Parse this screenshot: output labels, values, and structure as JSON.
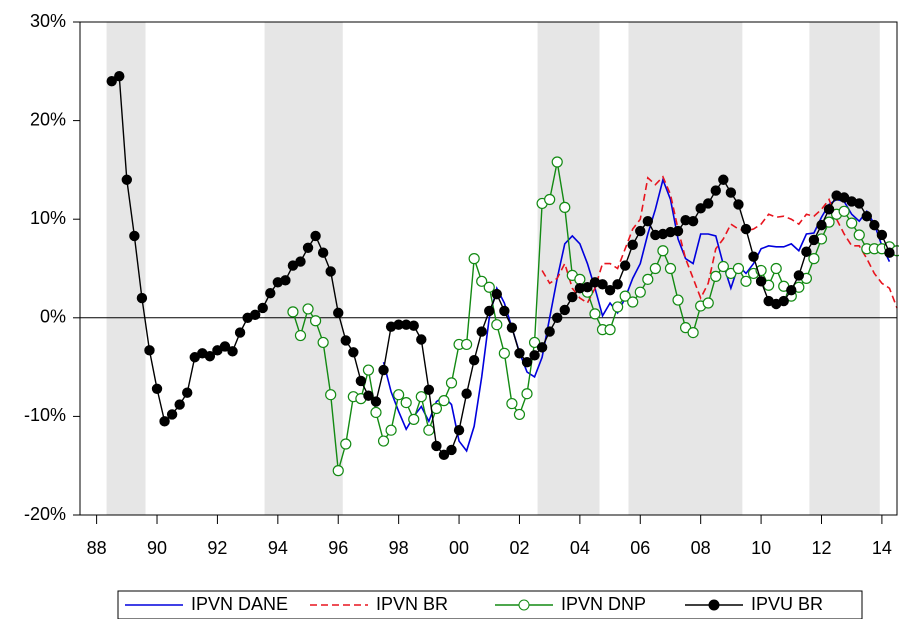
{
  "chart_data": {
    "type": "line",
    "x": [
      1988.5,
      1988.75,
      1989,
      1989.25,
      1989.5,
      1989.75,
      1990,
      1990.25,
      1990.5,
      1990.75,
      1991,
      1991.25,
      1991.5,
      1991.75,
      1992,
      1992.25,
      1992.5,
      1992.75,
      1993,
      1993.25,
      1993.5,
      1993.75,
      1994,
      1994.25,
      1994.5,
      1994.75,
      1995,
      1995.25,
      1995.5,
      1995.75,
      1996,
      1996.25,
      1996.5,
      1996.75,
      1997,
      1997.25,
      1997.5,
      1997.75,
      1998,
      1998.25,
      1998.5,
      1998.75,
      1999,
      1999.25,
      1999.5,
      1999.75,
      2000,
      2000.25,
      2000.5,
      2000.75,
      2001,
      2001.25,
      2001.5,
      2001.75,
      2002,
      2002.25,
      2002.5,
      2002.75,
      2003,
      2003.25,
      2003.5,
      2003.75,
      2004,
      2004.25,
      2004.5,
      2004.75,
      2005,
      2005.25,
      2005.5,
      2005.75,
      2006,
      2006.25,
      2006.5,
      2006.75,
      2007,
      2007.25,
      2007.5,
      2007.75,
      2008,
      2008.25,
      2008.5,
      2008.75,
      2009,
      2009.25,
      2009.5,
      2009.75,
      2010,
      2010.25,
      2010.5,
      2010.75,
      2011,
      2011.25,
      2011.5,
      2011.75,
      2012,
      2012.25,
      2012.5,
      2012.75,
      2013,
      2013.25,
      2013.5,
      2013.75,
      2014,
      2014.25,
      2014.5
    ],
    "series": [
      {
        "name": "IPVN DANE",
        "color": "#0000dd",
        "dash": false,
        "marker": "none",
        "values": [
          null,
          null,
          null,
          null,
          null,
          null,
          null,
          null,
          null,
          null,
          null,
          null,
          null,
          null,
          null,
          null,
          null,
          null,
          null,
          null,
          null,
          null,
          null,
          null,
          null,
          null,
          null,
          null,
          null,
          null,
          null,
          null,
          null,
          null,
          null,
          null,
          -4.5,
          -7.5,
          -9.5,
          -11.3,
          -10,
          -9,
          -10.5,
          -8.5,
          -8,
          -8.8,
          -12.5,
          -13.5,
          -11,
          -6,
          0,
          3,
          1.5,
          -1,
          -3.5,
          -5.5,
          -6,
          -4,
          0,
          4,
          7.5,
          8.3,
          7.5,
          5.5,
          3,
          0.2,
          1.5,
          0.5,
          2,
          4,
          5.5,
          8.5,
          11,
          14,
          12,
          8,
          6,
          5.5,
          8.5,
          8.5,
          8.3,
          5.4,
          3,
          5.3,
          4.5,
          5.5,
          7,
          7.3,
          7.2,
          7.2,
          7.5,
          6.8,
          8.5,
          8.6,
          10.2,
          11.5,
          12,
          11.8,
          10.5,
          9.8,
          10.8,
          9.5,
          7.3,
          5.7,
          null
        ]
      },
      {
        "name": "IPVN BR",
        "color": "#e8141e",
        "dash": true,
        "marker": "none",
        "values": [
          null,
          null,
          null,
          null,
          null,
          null,
          null,
          null,
          null,
          null,
          null,
          null,
          null,
          null,
          null,
          null,
          null,
          null,
          null,
          null,
          null,
          null,
          null,
          null,
          null,
          null,
          null,
          null,
          null,
          null,
          null,
          null,
          null,
          null,
          null,
          null,
          null,
          null,
          null,
          null,
          null,
          null,
          null,
          null,
          null,
          null,
          null,
          null,
          null,
          null,
          null,
          null,
          null,
          null,
          null,
          null,
          null,
          4.8,
          3.5,
          4,
          5.5,
          3,
          2,
          1.5,
          3,
          5.5,
          5.5,
          5,
          7,
          9,
          10,
          14.2,
          13.5,
          14.3,
          12.5,
          9,
          6,
          4,
          2,
          3.5,
          7,
          8,
          9.5,
          9,
          8.8,
          9,
          9.5,
          10.5,
          10.2,
          10.3,
          10,
          9.5,
          10.5,
          10.3,
          11,
          12,
          10,
          8.5,
          7.3,
          7.3,
          6,
          4.5,
          3.5,
          3,
          1
        ]
      },
      {
        "name": "IPVN DNP",
        "color": "#138a13",
        "dash": false,
        "marker": "open",
        "values": [
          null,
          null,
          null,
          null,
          null,
          null,
          null,
          null,
          null,
          null,
          null,
          null,
          null,
          null,
          null,
          null,
          null,
          null,
          null,
          null,
          null,
          null,
          null,
          null,
          0.6,
          -1.8,
          0.9,
          -0.3,
          -2.5,
          -7.8,
          -15.5,
          -12.8,
          -8,
          -8.2,
          -5.3,
          -9.6,
          -12.5,
          -11.4,
          -7.8,
          -8.6,
          -10.3,
          -8,
          -11.4,
          -9.2,
          -8.4,
          -6.6,
          -2.7,
          -2.7,
          6,
          3.7,
          3.1,
          -0.7,
          -3.6,
          -8.7,
          -9.8,
          -7.7,
          -2.5,
          11.6,
          12,
          15.8,
          11.2,
          4.3,
          3.9,
          2.6,
          0.4,
          -1.2,
          -1.2,
          1.1,
          2.2,
          1.6,
          2.6,
          3.9,
          5,
          6.8,
          5,
          1.8,
          -1,
          -1.5,
          1.2,
          1.5,
          4.2,
          5.2,
          4.5,
          5,
          3.7,
          4.5,
          4.8,
          3.3,
          5,
          3.2,
          2.2,
          3.1,
          4,
          6,
          8,
          9.7,
          10.5,
          10.8,
          9.6,
          8.4,
          7,
          7,
          7,
          7.2,
          6.8
        ]
      },
      {
        "name": "IPVU BR",
        "color": "#000000",
        "dash": false,
        "marker": "filled",
        "values": [
          24,
          24.5,
          14,
          8.3,
          2,
          -3.3,
          -7.2,
          -10.5,
          -9.8,
          -8.8,
          -7.6,
          -4,
          -3.6,
          -3.9,
          -3.3,
          -2.9,
          -3.4,
          -1.5,
          0,
          0.3,
          1,
          2.5,
          3.6,
          3.8,
          5.3,
          5.7,
          7.1,
          8.3,
          6.6,
          4.7,
          0.5,
          -2.3,
          -3.5,
          -6.4,
          -7.9,
          -8.5,
          -5.3,
          -0.9,
          -0.7,
          -0.7,
          -0.8,
          -2.2,
          -7.3,
          -13,
          -13.9,
          -13.4,
          -11.4,
          -7.7,
          -4.3,
          -1.4,
          0.7,
          2.4,
          0.7,
          -1,
          -3.6,
          -4.5,
          -3.8,
          -3,
          -1.4,
          0,
          0.8,
          2.1,
          3,
          3.1,
          3.6,
          3.4,
          2.8,
          3.4,
          5.3,
          7.4,
          8.8,
          9.8,
          8.4,
          8.5,
          8.7,
          8.8,
          9.9,
          9.8,
          11.1,
          11.6,
          12.9,
          14,
          12.7,
          11.5,
          9,
          6.2,
          3.7,
          1.7,
          1.4,
          1.7,
          2.8,
          4.3,
          6.7,
          7.9,
          9.4,
          11,
          12.4,
          12.2,
          11.8,
          11.6,
          10.3,
          9.4,
          8.4,
          6.6,
          null
        ]
      }
    ],
    "xlim": [
      1987.45,
      2014.5
    ],
    "xticks": [
      {
        "value": 1988,
        "label": "88"
      },
      {
        "value": 1990,
        "label": "90"
      },
      {
        "value": 1992,
        "label": "92"
      },
      {
        "value": 1994,
        "label": "94"
      },
      {
        "value": 1996,
        "label": "96"
      },
      {
        "value": 1998,
        "label": "98"
      },
      {
        "value": 2000,
        "label": "00"
      },
      {
        "value": 2002,
        "label": "02"
      },
      {
        "value": 2004,
        "label": "04"
      },
      {
        "value": 2006,
        "label": "06"
      },
      {
        "value": 2008,
        "label": "08"
      },
      {
        "value": 2010,
        "label": "10"
      },
      {
        "value": 2012,
        "label": "12"
      },
      {
        "value": 2014,
        "label": "14"
      }
    ],
    "ylim": [
      -20,
      30
    ],
    "yticks": [
      {
        "value": -20,
        "label": "-20%"
      },
      {
        "value": -10,
        "label": "-10%"
      },
      {
        "value": 0,
        "label": "0%"
      },
      {
        "value": 10,
        "label": "10%"
      },
      {
        "value": 20,
        "label": "20%"
      },
      {
        "value": 30,
        "label": "30%"
      }
    ],
    "reference_line": 0,
    "shaded": [
      [
        1988.33,
        1989.62
      ],
      [
        1993.56,
        1996.15
      ],
      [
        2002.6,
        2004.65
      ],
      [
        2005.61,
        2009.38
      ],
      [
        2011.6,
        2013.93
      ]
    ],
    "shade_color": "#e6e6e6",
    "legend": "bottom"
  }
}
